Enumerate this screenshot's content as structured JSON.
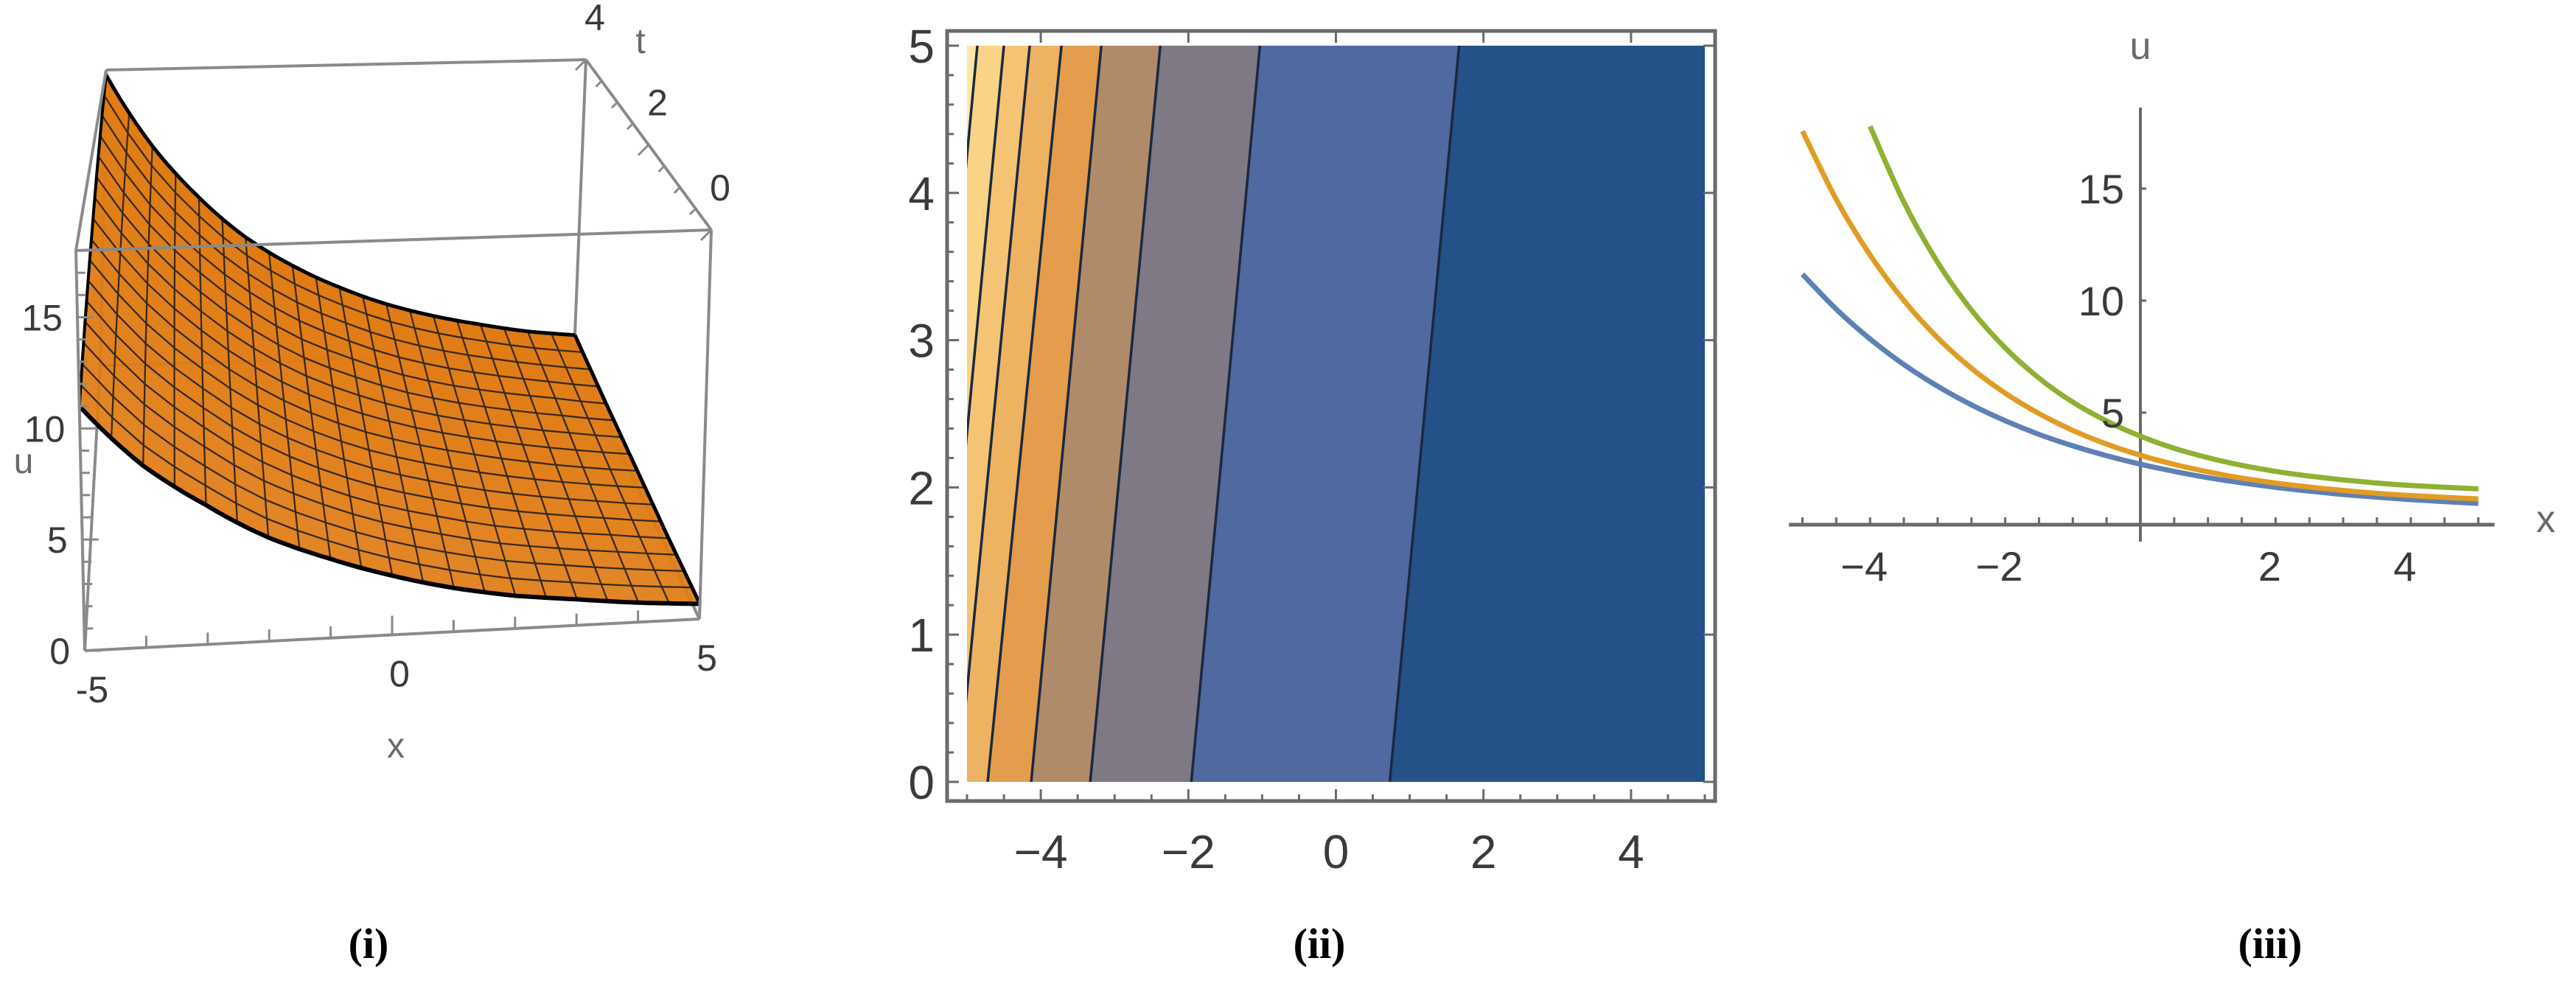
{
  "captions": [
    "(i)",
    "(ii)",
    "(iii)"
  ],
  "chart_data": [
    {
      "type": "surface",
      "xlabel": "x",
      "ylabel": "t",
      "zlabel": "u",
      "xlim": [
        -5,
        5
      ],
      "tlim": [
        0,
        4
      ],
      "ulim": [
        0,
        18
      ],
      "xticks": [
        "-5",
        "0",
        "5"
      ],
      "tticks": [
        "0",
        "2",
        "4"
      ],
      "uticks": [
        "0",
        "5",
        "10",
        "15"
      ],
      "surface_color": "#e07b12",
      "mesh_color": "#3a2a1a",
      "x": [
        -5,
        -4,
        -3,
        -2,
        -1,
        0,
        1,
        2,
        3,
        4,
        5
      ],
      "t": [
        0,
        1,
        2,
        3,
        4
      ],
      "u": [
        [
          11.0,
          8.2,
          6.3,
          4.7,
          3.6,
          2.7,
          2.0,
          1.5,
          1.2,
          0.9,
          0.7
        ],
        [
          12.4,
          9.3,
          7.1,
          5.3,
          4.0,
          3.0,
          2.3,
          1.7,
          1.3,
          1.0,
          0.7
        ],
        [
          13.9,
          10.5,
          8.0,
          6.0,
          4.5,
          3.4,
          2.6,
          2.0,
          1.5,
          1.1,
          0.8
        ],
        [
          15.7,
          11.8,
          9.0,
          6.8,
          5.1,
          3.9,
          2.9,
          2.2,
          1.7,
          1.3,
          0.9
        ],
        [
          17.7,
          13.3,
          10.1,
          7.6,
          5.8,
          4.4,
          3.3,
          2.5,
          1.9,
          1.4,
          1.1
        ]
      ]
    },
    {
      "type": "contour",
      "xlim": [
        -5,
        5
      ],
      "ylim": [
        0,
        5
      ],
      "xticks": [
        "−4",
        "−2",
        "0",
        "2",
        "4"
      ],
      "xtick_values": [
        -4,
        -2,
        0,
        2,
        4
      ],
      "yticks": [
        "0",
        "1",
        "2",
        "3",
        "4",
        "5"
      ],
      "ytick_values": [
        0,
        1,
        2,
        3,
        4,
        5
      ],
      "contour_lines": [
        {
          "x_at_t0": -5.8,
          "x_at_t5": -4.86
        },
        {
          "x_at_t0": -5.45,
          "x_at_t5": -4.5
        },
        {
          "x_at_t0": -5.12,
          "x_at_t5": -4.15
        },
        {
          "x_at_t0": -4.72,
          "x_at_t5": -3.72
        },
        {
          "x_at_t0": -4.13,
          "x_at_t5": -3.18
        },
        {
          "x_at_t0": -3.33,
          "x_at_t5": -2.38
        },
        {
          "x_at_t0": -1.96,
          "x_at_t5": -1.03
        },
        {
          "x_at_t0": 0.73,
          "x_at_t5": 1.67
        }
      ],
      "band_colors": [
        "#fde7a6",
        "#f9d386",
        "#f4c474",
        "#eeb263",
        "#e49d4c",
        "#b08b69",
        "#7f7985",
        "#5069a0",
        "#245188"
      ],
      "line_color": "#1c2840"
    },
    {
      "type": "line",
      "xlabel": "x",
      "ylabel": "u",
      "xlim": [
        -5,
        5
      ],
      "ylim": [
        0,
        18
      ],
      "xticks": [
        "−4",
        "−2",
        "2",
        "4"
      ],
      "xtick_values": [
        -4,
        -2,
        2,
        4
      ],
      "yticks": [
        "5",
        "10",
        "15"
      ],
      "ytick_values": [
        5,
        10,
        15
      ],
      "series": [
        {
          "color": "#5e81b5",
          "x": [
            -5,
            -4.5,
            -4,
            -3.5,
            -3,
            -2.5,
            -2,
            -1.5,
            -1,
            -0.5,
            0,
            0.5,
            1,
            1.5,
            2,
            2.5,
            3,
            3.5,
            4,
            4.5,
            5
          ],
          "y": [
            11.18,
            9.62,
            8.29,
            7.15,
            6.18,
            5.35,
            4.64,
            4.03,
            3.52,
            3.08,
            2.7,
            2.38,
            2.1,
            1.87,
            1.67,
            1.5,
            1.35,
            1.23,
            1.12,
            1.03,
            0.95
          ]
        },
        {
          "color": "#e19c24",
          "x": [
            -5,
            -4.5,
            -4,
            -3.5,
            -3,
            -2.5,
            -2,
            -1.5,
            -1,
            -0.5,
            0,
            0.5,
            1,
            1.5,
            2,
            2.5,
            3,
            3.5,
            4,
            4.5,
            5
          ],
          "y": [
            17.57,
            14.52,
            12.04,
            10.01,
            8.34,
            6.98,
            5.87,
            4.96,
            4.21,
            3.6,
            3.1,
            2.69,
            2.36,
            2.08,
            1.86,
            1.68,
            1.53,
            1.4,
            1.3,
            1.22,
            1.15
          ]
        },
        {
          "color": "#8fb032",
          "x": [
            -4,
            -3.5,
            -3,
            -2.5,
            -2,
            -1.5,
            -1,
            -0.5,
            0,
            0.5,
            1,
            1.5,
            2,
            2.5,
            3,
            3.5,
            4,
            4.5,
            5
          ],
          "y": [
            17.78,
            14.4,
            11.71,
            9.58,
            7.89,
            6.54,
            5.47,
            4.63,
            3.95,
            3.41,
            2.99,
            2.65,
            2.38,
            2.17,
            2.0,
            1.86,
            1.75,
            1.67,
            1.6
          ]
        }
      ]
    }
  ]
}
